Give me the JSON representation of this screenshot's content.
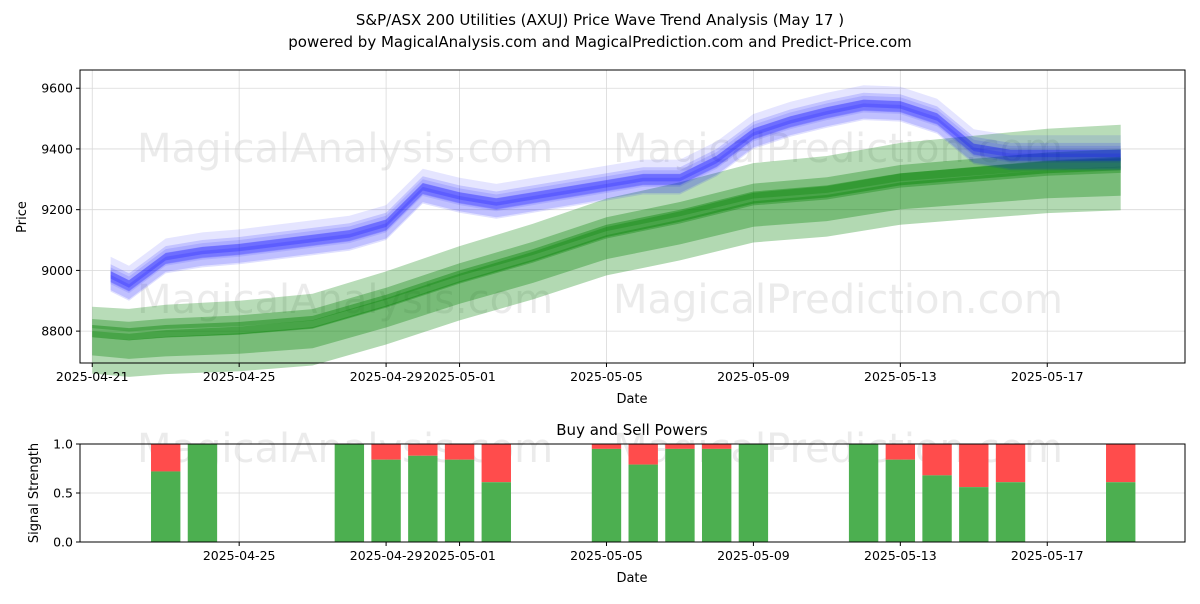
{
  "figure": {
    "title_line1": "S&P/ASX 200 Utilities (AXUJ) Price Wave Trend Analysis (May 17 )",
    "title_line2": "powered by MagicalAnalysis.com and MagicalPrediction.com and Predict-Price.com",
    "watermarks": [
      "MagicalAnalysis.com",
      "MagicalPrediction.com"
    ]
  },
  "chart_data": [
    {
      "type": "area",
      "title": "",
      "xlabel": "Date",
      "ylabel": "Price",
      "ylim": [
        8695,
        9660
      ],
      "xlim": [
        "2025-04-20 16:00",
        "2025-05-20 18:00"
      ],
      "yticks": [
        8800,
        9000,
        9200,
        9400,
        9600
      ],
      "xticks": [
        "2025-04-21",
        "2025-04-25",
        "2025-04-29",
        "2025-05-01",
        "2025-05-05",
        "2025-05-09",
        "2025-05-13",
        "2025-05-17"
      ],
      "grid": true,
      "series": [
        {
          "color": "#0000ff",
          "values": [
            [
              "2025-04-21 12:00",
              8980
            ],
            [
              "2025-04-22",
              8950
            ],
            [
              "2025-04-23",
              9040
            ],
            [
              "2025-04-24",
              9060
            ],
            [
              "2025-04-25",
              9070
            ],
            [
              "2025-04-26",
              9085
            ],
            [
              "2025-04-27",
              9100
            ],
            [
              "2025-04-28",
              9115
            ],
            [
              "2025-04-29",
              9150
            ],
            [
              "2025-04-30",
              9270
            ],
            [
              "2025-05-01",
              9240
            ],
            [
              "2025-05-02",
              9220
            ],
            [
              "2025-05-03",
              9240
            ],
            [
              "2025-05-04",
              9260
            ],
            [
              "2025-05-05",
              9280
            ],
            [
              "2025-05-06",
              9300
            ],
            [
              "2025-05-07",
              9300
            ],
            [
              "2025-05-08",
              9360
            ],
            [
              "2025-05-09",
              9450
            ],
            [
              "2025-05-10",
              9490
            ],
            [
              "2025-05-11",
              9520
            ],
            [
              "2025-05-12",
              9545
            ],
            [
              "2025-05-13",
              9540
            ],
            [
              "2025-05-14",
              9500
            ],
            [
              "2025-05-15",
              9400
            ],
            [
              "2025-05-16",
              9380
            ],
            [
              "2025-05-17",
              9380
            ],
            [
              "2025-05-18",
              9380
            ],
            [
              "2025-05-19",
              9380
            ]
          ]
        },
        {
          "color": "#008000",
          "values": [
            [
              "2025-04-21",
              8800
            ],
            [
              "2025-04-22",
              8790
            ],
            [
              "2025-04-23",
              8800
            ],
            [
              "2025-04-25",
              8810
            ],
            [
              "2025-04-27",
              8830
            ],
            [
              "2025-04-29",
              8900
            ],
            [
              "2025-05-01",
              8980
            ],
            [
              "2025-05-03",
              9050
            ],
            [
              "2025-05-05",
              9130
            ],
            [
              "2025-05-07",
              9180
            ],
            [
              "2025-05-09",
              9240
            ],
            [
              "2025-05-11",
              9260
            ],
            [
              "2025-05-13",
              9300
            ],
            [
              "2025-05-15",
              9320
            ],
            [
              "2025-05-17",
              9340
            ],
            [
              "2025-05-19",
              9350
            ]
          ]
        }
      ]
    },
    {
      "type": "bar",
      "title": "Buy and Sell Powers",
      "xlabel": "Date",
      "ylabel": "Signal Strength",
      "ylim": [
        0,
        1.0
      ],
      "yticks": [
        "0.0",
        "0.5",
        "1.0"
      ],
      "xticks": [
        "2025-04-25",
        "2025-04-29",
        "2025-05-01",
        "2025-05-05",
        "2025-05-09",
        "2025-05-13",
        "2025-05-17"
      ],
      "grid": true,
      "series": [
        {
          "name": "Buy",
          "color": "#4caf50"
        },
        {
          "name": "Sell",
          "color": "#ff4c4c"
        }
      ],
      "categories": [
        "2025-04-23",
        "2025-04-24",
        "2025-04-28",
        "2025-04-29",
        "2025-04-30",
        "2025-05-01",
        "2025-05-02",
        "2025-05-05",
        "2025-05-06",
        "2025-05-07",
        "2025-05-08",
        "2025-05-09",
        "2025-05-12",
        "2025-05-13",
        "2025-05-14",
        "2025-05-15",
        "2025-05-16",
        "2025-05-19"
      ],
      "buy": [
        0.72,
        1.0,
        1.0,
        0.84,
        0.88,
        0.84,
        0.61,
        0.95,
        0.79,
        0.95,
        0.95,
        1.0,
        1.0,
        0.84,
        0.68,
        0.56,
        0.61,
        0.61
      ]
    }
  ]
}
